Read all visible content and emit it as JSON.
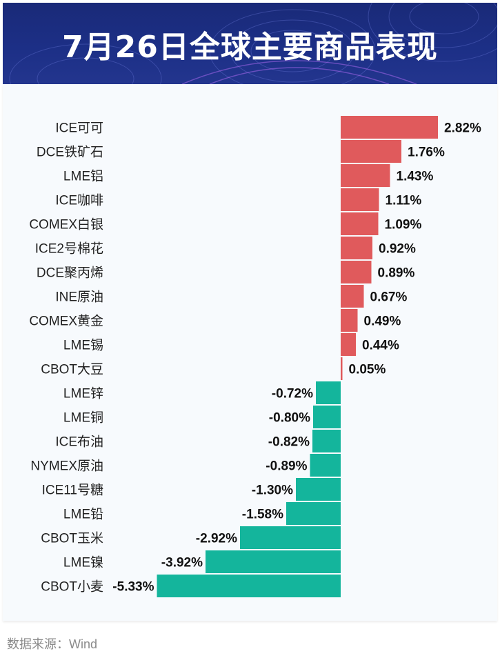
{
  "header": {
    "title": "7月26日全球主要商品表现"
  },
  "source": "数据来源：Wind",
  "colors": {
    "positive": "#e05a5c",
    "negative": "#14b59c",
    "header_bg": "#1c2f86"
  },
  "chart_data": {
    "type": "bar",
    "orientation": "horizontal",
    "title": "7月26日全球主要商品表现",
    "unit": "%",
    "xlim": [
      -5.33,
      2.82
    ],
    "categories": [
      "ICE可可",
      "DCE铁矿石",
      "LME铝",
      "ICE咖啡",
      "COMEX白银",
      "ICE2号棉花",
      "DCE聚丙烯",
      "INE原油",
      "COMEX黄金",
      "LME锡",
      "CBOT大豆",
      "LME锌",
      "LME铜",
      "ICE布油",
      "NYMEX原油",
      "ICE11号糖",
      "LME铅",
      "CBOT玉米",
      "LME镍",
      "CBOT小麦"
    ],
    "values": [
      2.82,
      1.76,
      1.43,
      1.11,
      1.09,
      0.92,
      0.89,
      0.67,
      0.49,
      0.44,
      0.05,
      -0.72,
      -0.8,
      -0.82,
      -0.89,
      -1.3,
      -1.58,
      -2.92,
      -3.92,
      -5.33
    ],
    "labels": [
      "2.82%",
      "1.76%",
      "1.43%",
      "1.11%",
      "1.09%",
      "0.92%",
      "0.89%",
      "0.67%",
      "0.49%",
      "0.44%",
      "0.05%",
      "-0.72%",
      "-0.80%",
      "-0.82%",
      "-0.89%",
      "-1.30%",
      "-1.58%",
      "-2.92%",
      "-3.92%",
      "-5.33%"
    ]
  }
}
